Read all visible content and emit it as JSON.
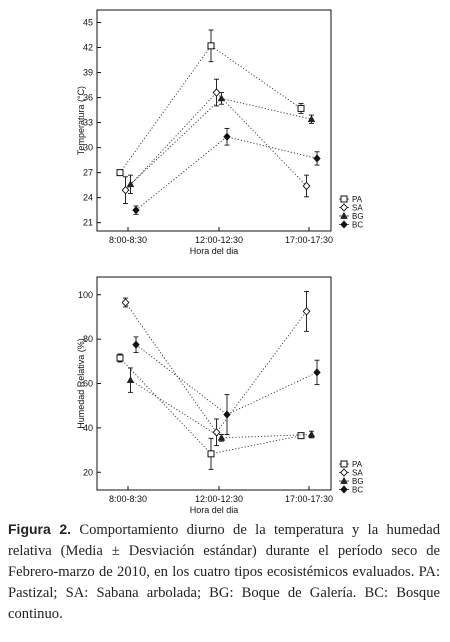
{
  "chart_data": [
    {
      "type": "line",
      "xlabel": "Hora del dia",
      "ylabel": "Temperatura (°C)",
      "categories": [
        "8:00-8:30",
        "12:00-12:30",
        "17:00-17:30"
      ],
      "yticks": [
        21,
        24,
        27,
        30,
        33,
        36,
        39,
        42,
        45
      ],
      "ylim": [
        20,
        46.5
      ],
      "error_bars": true,
      "line_style": "dotted",
      "legend_position": "bottom-right",
      "series": [
        {
          "name": "PA",
          "marker": "open-square",
          "values": [
            27.0,
            42.2,
            34.7
          ],
          "err": [
            0.3,
            1.9,
            0.6
          ]
        },
        {
          "name": "SA",
          "marker": "open-diamond",
          "values": [
            24.9,
            36.6,
            25.4
          ],
          "err": [
            1.6,
            1.6,
            1.3
          ]
        },
        {
          "name": "BG",
          "marker": "filled-triangle",
          "values": [
            25.6,
            35.9,
            33.4
          ],
          "err": [
            1.1,
            0.7,
            0.5
          ]
        },
        {
          "name": "BC",
          "marker": "filled-diamond",
          "values": [
            22.5,
            31.3,
            28.7
          ],
          "err": [
            0.5,
            1.0,
            0.8
          ]
        }
      ]
    },
    {
      "type": "line",
      "xlabel": "Hora del dia",
      "ylabel": "Humedad Relativa (%)",
      "categories": [
        "8:00-8:30",
        "12:00-12:30",
        "17:00-17:30"
      ],
      "yticks": [
        20,
        40,
        60,
        80,
        100
      ],
      "ylim": [
        12,
        108
      ],
      "error_bars": true,
      "line_style": "dotted",
      "legend_position": "bottom-right",
      "series": [
        {
          "name": "PA",
          "marker": "open-square",
          "values": [
            71.5,
            28.3,
            36.5
          ],
          "err": [
            1.8,
            7.0,
            1.0
          ]
        },
        {
          "name": "SA",
          "marker": "open-diamond",
          "values": [
            96.5,
            38.0,
            92.5
          ],
          "err": [
            2.0,
            6.0,
            9.0
          ]
        },
        {
          "name": "BG",
          "marker": "filled-triangle",
          "values": [
            61.5,
            35.5,
            37.0
          ],
          "err": [
            5.5,
            1.5,
            1.5
          ]
        },
        {
          "name": "BC",
          "marker": "filled-diamond",
          "values": [
            77.5,
            46.0,
            65.0
          ],
          "err": [
            3.5,
            9.0,
            5.5
          ]
        }
      ]
    }
  ],
  "caption": {
    "label": "Figura 2.",
    "text": "Comportamiento diurno de la temperatura y la humedad relativa (Media ± Desviación estándar) durante el período seco de Febrero-marzo de 2010, en los cuatro tipos ecosistémicos evaluados. PA: Pastizal; SA: Sabana arbolada; BG: Boque de Galería. BC: Bosque continuo."
  }
}
